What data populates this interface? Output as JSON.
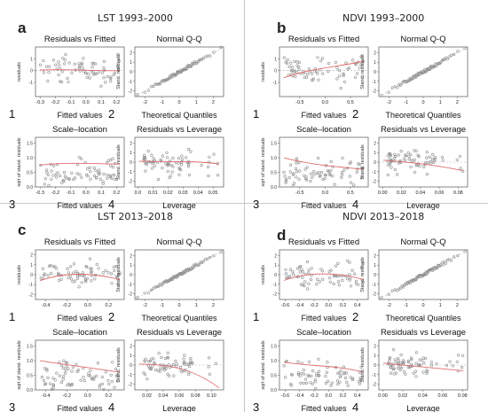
{
  "panels": [
    {
      "letter": "a",
      "title": "LST 1993–2000",
      "plots": [
        {
          "number": "1",
          "title": "Residuals vs Fitted",
          "xlabel": "Fitted values",
          "ylabel": "residuals",
          "kind": "resfit",
          "xticks": [
            "-0.3",
            "-0.2",
            "-0.1",
            "0.0",
            "0.1",
            "0.2"
          ],
          "xlim": [
            -0.33,
            0.25
          ],
          "yticks": [
            "1",
            "0",
            "-1"
          ],
          "ylim": [
            -2.2,
            2
          ],
          "trend": [
            0.05,
            0.15,
            -0.05,
            0.0
          ]
        },
        {
          "number": "2",
          "title": "Normal Q-Q",
          "xlabel": "Theoretical Quantiles",
          "ylabel": "Stand. residuals",
          "kind": "qq",
          "xticks": [
            "-2",
            "-1",
            "0",
            "1",
            "2"
          ],
          "xlim": [
            -2.6,
            2.6
          ],
          "yticks": [
            "2",
            "1",
            "0",
            "-1",
            "-2"
          ],
          "ylim": [
            -2.6,
            2.6
          ]
        },
        {
          "number": "3",
          "title": "Scale–location",
          "xlabel": "Fitted values",
          "ylabel": "sqrt of stand. residuals",
          "kind": "scale",
          "xticks": [
            "-0.3",
            "-0.2",
            "-0.1",
            "0.0",
            "0.1",
            "0.2"
          ],
          "xlim": [
            -0.33,
            0.25
          ],
          "yticks": [
            "1.5",
            "1.0",
            "0.5",
            "0.0"
          ],
          "ylim": [
            0,
            1.7
          ],
          "trend": [
            0.75,
            0.85,
            0.8,
            0.78
          ]
        },
        {
          "number": "4",
          "title": "Residuals vs Leverage",
          "xlabel": "Leverage",
          "ylabel": "Stand. residuals",
          "kind": "lev",
          "xticks": [
            "0.0",
            "0.01",
            "0.02",
            "0.03",
            "0.04",
            "0.05"
          ],
          "xlim": [
            -0.002,
            0.057
          ],
          "yticks": [
            "2",
            "1",
            "0",
            "-1",
            "-2"
          ],
          "ylim": [
            -2.6,
            2.6
          ],
          "trend": [
            0.1,
            0.0,
            0.2,
            -0.2
          ]
        }
      ]
    },
    {
      "letter": "b",
      "title": "NDVI 1993–2000",
      "plots": [
        {
          "number": "1",
          "title": "Residuals vs Fitted",
          "xlabel": "Fitted values",
          "ylabel": "residuals",
          "kind": "resfit",
          "xticks": [
            "-0.5",
            "0.0",
            "0.5"
          ],
          "xlim": [
            -0.9,
            0.85
          ],
          "yticks": [
            "1",
            "0",
            "-1"
          ],
          "ylim": [
            -2.2,
            2
          ],
          "trend": [
            -0.6,
            0.2,
            0.3,
            0.8
          ]
        },
        {
          "number": "2",
          "title": "Normal Q-Q",
          "xlabel": "Theoretical Quantiles",
          "ylabel": "Stand. residuals",
          "kind": "qq",
          "xticks": [
            "-2",
            "-1",
            "0",
            "1",
            "2"
          ],
          "xlim": [
            -2.6,
            2.6
          ],
          "yticks": [
            "2",
            "1",
            "0",
            "-1",
            "-2"
          ],
          "ylim": [
            -2.6,
            2.6
          ]
        },
        {
          "number": "3",
          "title": "Scale–location",
          "xlabel": "Fitted values",
          "ylabel": "sqrt of stand. residuals",
          "kind": "scale",
          "xticks": [
            "-0.5",
            "0.0",
            "0.5"
          ],
          "xlim": [
            -0.9,
            0.85
          ],
          "yticks": [
            "1.5",
            "1.0",
            "0.5",
            "0.0"
          ],
          "ylim": [
            0,
            1.7
          ],
          "trend": [
            1.0,
            0.75,
            0.7,
            0.6
          ]
        },
        {
          "number": "4",
          "title": "Residuals vs Leverage",
          "xlabel": "Leverage",
          "ylabel": "Stand. residuals",
          "kind": "lev",
          "xticks": [
            "0.00",
            "0.02",
            "0.04",
            "0.06",
            "0.08"
          ],
          "xlim": [
            -0.004,
            0.09
          ],
          "yticks": [
            "2",
            "1",
            "0",
            "-1",
            "-2"
          ],
          "ylim": [
            -2.6,
            2.6
          ],
          "trend": [
            0.2,
            0.0,
            -0.3,
            -0.9
          ]
        }
      ]
    },
    {
      "letter": "c",
      "title": "LST 2013–2018",
      "plots": [
        {
          "number": "1",
          "title": "Residuals vs Fitted",
          "xlabel": "Fitted values",
          "ylabel": "residuals",
          "kind": "resfit",
          "xticks": [
            "-0.4",
            "-0.2",
            "0.0",
            "0.2"
          ],
          "xlim": [
            -0.5,
            0.35
          ],
          "yticks": [
            "2",
            "1",
            "0",
            "-1",
            "-2"
          ],
          "ylim": [
            -2.5,
            2.5
          ],
          "trend": [
            -0.6,
            0.3,
            0.2,
            -0.5
          ]
        },
        {
          "number": "2",
          "title": "Normal Q-Q",
          "xlabel": "Theoretical Quantiles",
          "ylabel": "Stand. residuals",
          "kind": "qq",
          "xticks": [
            "-2",
            "-1",
            "0",
            "1",
            "2"
          ],
          "xlim": [
            -2.6,
            2.6
          ],
          "yticks": [
            "2",
            "1",
            "0",
            "-1",
            "-2"
          ],
          "ylim": [
            -2.6,
            2.6
          ]
        },
        {
          "number": "3",
          "title": "Scale–location",
          "xlabel": "Fitted values",
          "ylabel": "sqrt of stand. residuals",
          "kind": "scale",
          "xticks": [
            "-0.4",
            "-0.2",
            "0.0",
            "0.2"
          ],
          "xlim": [
            -0.5,
            0.35
          ],
          "yticks": [
            "1.5",
            "1.0",
            "0.5",
            "0.0"
          ],
          "ylim": [
            0,
            1.7
          ],
          "trend": [
            1.0,
            0.85,
            0.75,
            0.6
          ]
        },
        {
          "number": "4",
          "title": "Residuals vs Leverage",
          "xlabel": "Leverage",
          "ylabel": "Stand. residuals",
          "kind": "lev",
          "xticks": [
            "0.02",
            "0.04",
            "0.06",
            "0.08",
            "0.10"
          ],
          "xlim": [
            0.005,
            0.115
          ],
          "yticks": [
            "2",
            "1",
            "0",
            "-1",
            "-2"
          ],
          "ylim": [
            -2.6,
            2.6
          ],
          "trend": [
            0.1,
            0.1,
            -0.3,
            -2.4
          ]
        }
      ]
    },
    {
      "letter": "d",
      "title": "NDVI 2013–2018",
      "plots": [
        {
          "number": "1",
          "title": "Residuals vs Fitted",
          "xlabel": "Fitted values",
          "ylabel": "residuals",
          "kind": "resfit",
          "xticks": [
            "-0.6",
            "-0.4",
            "-0.2",
            "0.0",
            "0.2",
            "0.4"
          ],
          "xlim": [
            -0.68,
            0.55
          ],
          "yticks": [
            "2",
            "1",
            "0",
            "-1",
            "-2"
          ],
          "ylim": [
            -2.6,
            2.6
          ],
          "trend": [
            -0.6,
            0.4,
            0.2,
            -0.5
          ]
        },
        {
          "number": "2",
          "title": "Normal Q-Q",
          "xlabel": "Theoretical Quantiles",
          "ylabel": "Stand. residuals",
          "kind": "qq",
          "xticks": [
            "-2",
            "-1",
            "0",
            "1",
            "2"
          ],
          "xlim": [
            -2.6,
            2.6
          ],
          "yticks": [
            "2",
            "1",
            "0",
            "-1",
            "-2"
          ],
          "ylim": [
            -2.6,
            2.6
          ]
        },
        {
          "number": "3",
          "title": "Scale–location",
          "xlabel": "Fitted values",
          "ylabel": "sqrt of stand. residuals",
          "kind": "scale",
          "xticks": [
            "-0.6",
            "-0.4",
            "-0.2",
            "0.0",
            "0.2",
            "0.4"
          ],
          "xlim": [
            -0.68,
            0.55
          ],
          "yticks": [
            "1.5",
            "1.0",
            "0.5",
            "0.0"
          ],
          "ylim": [
            0,
            1.7
          ],
          "trend": [
            0.95,
            0.8,
            0.85,
            0.6
          ]
        },
        {
          "number": "4",
          "title": "Residuals vs Leverage",
          "xlabel": "Leverage",
          "ylabel": "Stand. residuals",
          "kind": "lev",
          "xticks": [
            "0.00",
            "0.02",
            "0.04",
            "0.06",
            "0.08"
          ],
          "xlim": [
            -0.004,
            0.085
          ],
          "yticks": [
            "2",
            "1",
            "0",
            "-1",
            "-2"
          ],
          "ylim": [
            -2.6,
            2.6
          ],
          "trend": [
            0.2,
            -0.1,
            -0.3,
            -0.6
          ]
        }
      ]
    }
  ],
  "colors": {
    "trend": "#e06b6b",
    "points": "#8c8c8c",
    "axis": "#444444",
    "dash": "#b0b0b0"
  },
  "chart_data": {
    "type": "scatter",
    "note": "Regression diagnostic plots (4 panels x 4 plots); point clouds are approximate renderings",
    "titles": [
      "LST 1993–2000",
      "NDVI 1993–2000",
      "LST 2013–2018",
      "NDVI 2013–2018"
    ],
    "plot_titles": [
      "Residuals vs Fitted",
      "Normal Q-Q",
      "Scale–location",
      "Residuals vs Leverage"
    ]
  }
}
